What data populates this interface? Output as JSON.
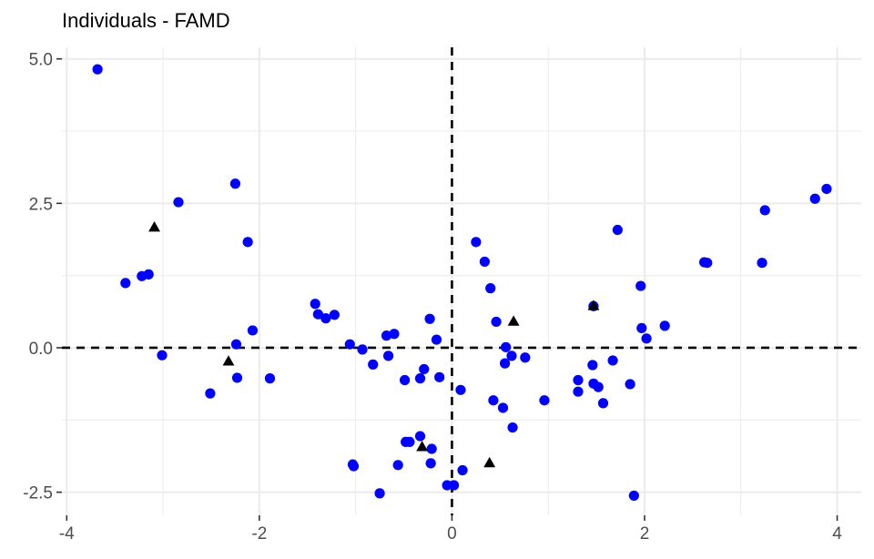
{
  "chart_data": {
    "type": "scatter",
    "title": "Individuals - FAMD",
    "xlabel": "",
    "ylabel": "",
    "xlim": [
      -4.05,
      4.25
    ],
    "ylim": [
      -2.9,
      5.2
    ],
    "x_ticks": [
      -4,
      -2,
      0,
      2,
      4
    ],
    "x_tick_labels": [
      "-4",
      "-2",
      "0",
      "2",
      "4"
    ],
    "y_ticks": [
      -2.5,
      0.0,
      2.5,
      5.0
    ],
    "y_tick_labels": [
      "-2.5",
      "0.0",
      "2.5",
      "5.0"
    ],
    "grid": true,
    "reference_lines": {
      "x": 0,
      "y": 0,
      "style": "dashed"
    },
    "colors": {
      "points": "#0000ff",
      "triangles": "#000000",
      "grid": "#ebebeb"
    },
    "series": [
      {
        "marker": "circle",
        "color": "#0000ff",
        "points": [
          [
            -3.68,
            4.82
          ],
          [
            -3.39,
            1.12
          ],
          [
            -3.22,
            1.24
          ],
          [
            -3.15,
            1.27
          ],
          [
            -3.01,
            -0.13
          ],
          [
            -2.84,
            2.52
          ],
          [
            -2.25,
            2.84
          ],
          [
            -2.12,
            1.83
          ],
          [
            -2.24,
            0.06
          ],
          [
            -2.07,
            0.3
          ],
          [
            -2.23,
            -0.52
          ],
          [
            -2.51,
            -0.79
          ],
          [
            -1.89,
            -0.53
          ],
          [
            -1.42,
            0.76
          ],
          [
            -1.39,
            0.58
          ],
          [
            -1.31,
            0.51
          ],
          [
            -1.22,
            0.57
          ],
          [
            -1.06,
            0.06
          ],
          [
            -0.93,
            -0.03
          ],
          [
            -0.82,
            -0.29
          ],
          [
            -0.68,
            0.21
          ],
          [
            -0.6,
            0.24
          ],
          [
            -0.66,
            -0.14
          ],
          [
            -0.49,
            -0.56
          ],
          [
            -0.33,
            -0.53
          ],
          [
            -0.29,
            -0.37
          ],
          [
            -0.23,
            0.5
          ],
          [
            -0.16,
            0.14
          ],
          [
            -0.13,
            -0.51
          ],
          [
            -1.03,
            -2.02
          ],
          [
            -1.02,
            -2.05
          ],
          [
            -0.56,
            -2.03
          ],
          [
            -0.48,
            -1.63
          ],
          [
            -0.44,
            -1.63
          ],
          [
            -0.33,
            -1.53
          ],
          [
            -0.21,
            -1.75
          ],
          [
            -0.22,
            -2.0
          ],
          [
            -0.75,
            -2.52
          ],
          [
            -0.05,
            -2.38
          ],
          [
            0.02,
            -2.38
          ],
          [
            0.09,
            -0.73
          ],
          [
            0.11,
            -2.12
          ],
          [
            0.25,
            1.83
          ],
          [
            0.34,
            1.49
          ],
          [
            0.4,
            1.03
          ],
          [
            0.46,
            0.45
          ],
          [
            0.56,
            0.01
          ],
          [
            0.62,
            -0.14
          ],
          [
            0.76,
            -0.17
          ],
          [
            0.55,
            -0.27
          ],
          [
            0.43,
            -0.91
          ],
          [
            0.53,
            -1.04
          ],
          [
            0.63,
            -1.38
          ],
          [
            0.96,
            -0.91
          ],
          [
            1.31,
            -0.56
          ],
          [
            1.31,
            -0.76
          ],
          [
            1.46,
            -0.3
          ],
          [
            1.47,
            -0.62
          ],
          [
            1.52,
            -0.68
          ],
          [
            1.57,
            -0.96
          ],
          [
            1.67,
            -0.22
          ],
          [
            1.72,
            2.04
          ],
          [
            1.85,
            -0.63
          ],
          [
            1.96,
            1.07
          ],
          [
            1.97,
            0.34
          ],
          [
            2.02,
            0.16
          ],
          [
            2.21,
            0.38
          ],
          [
            1.89,
            -2.56
          ],
          [
            1.47,
            0.72
          ],
          [
            2.62,
            1.48
          ],
          [
            2.65,
            1.47
          ],
          [
            3.22,
            1.47
          ],
          [
            3.25,
            2.38
          ],
          [
            3.77,
            2.58
          ],
          [
            3.89,
            2.75
          ]
        ]
      },
      {
        "marker": "triangle",
        "color": "#000000",
        "points": [
          [
            -3.09,
            2.08
          ],
          [
            -2.32,
            -0.24
          ],
          [
            -0.31,
            -1.72
          ],
          [
            0.39,
            -2.0
          ],
          [
            0.64,
            0.45
          ],
          [
            1.47,
            0.72
          ]
        ]
      }
    ]
  }
}
